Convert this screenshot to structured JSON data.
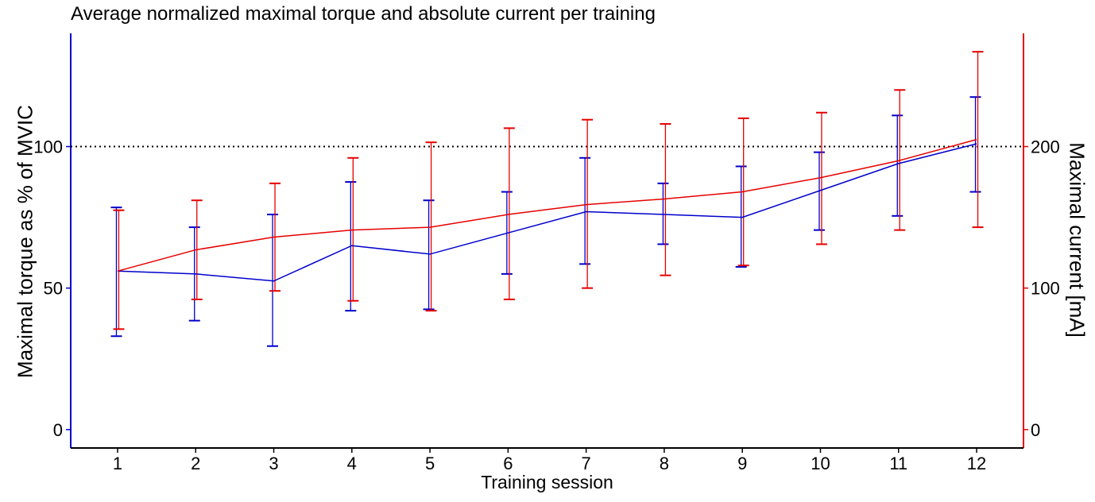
{
  "chart_data": {
    "type": "line",
    "title": "Average normalized maximal torque and absolute current per training",
    "xlabel": "Training session",
    "ylabel_left": "Maximal torque as % of MVIC",
    "ylabel_right": "Maximal current [mA]",
    "categories": [
      "1",
      "2",
      "3",
      "4",
      "5",
      "6",
      "7",
      "8",
      "9",
      "10",
      "11",
      "12"
    ],
    "xlim": [
      0.4,
      12.6
    ],
    "ylim_left": [
      -6.5,
      140
    ],
    "ylim_right": [
      -13,
      280
    ],
    "yticks_left": [
      "0",
      "50",
      "100"
    ],
    "yticks_right": [
      "0",
      "100",
      "200"
    ],
    "reference_line": {
      "axis": "left",
      "value": 100,
      "style": "dotted"
    },
    "grid": false,
    "series": [
      {
        "axis": "left",
        "color": "#0000cc",
        "values": [
          56,
          55,
          52.5,
          65,
          62,
          69.5,
          77,
          76,
          75,
          84.5,
          94,
          101
        ],
        "error_low": [
          33,
          38.5,
          29.5,
          42,
          42.5,
          55,
          58.5,
          65.5,
          57.5,
          70.5,
          75.5,
          84
        ],
        "error_high": [
          78.5,
          71.5,
          76,
          87.5,
          81,
          84,
          96,
          87,
          93,
          98,
          111,
          117.5
        ]
      },
      {
        "axis": "right",
        "color": "#e60000",
        "values": [
          112,
          127,
          136,
          141,
          143,
          152,
          159,
          163,
          168,
          178,
          190,
          205
        ],
        "error_low": [
          71,
          92,
          98,
          91,
          84,
          92,
          100,
          109,
          116,
          131,
          141,
          143
        ],
        "error_high": [
          155,
          162,
          174,
          192,
          203,
          213,
          219,
          216,
          220,
          224,
          240,
          267
        ]
      }
    ]
  }
}
